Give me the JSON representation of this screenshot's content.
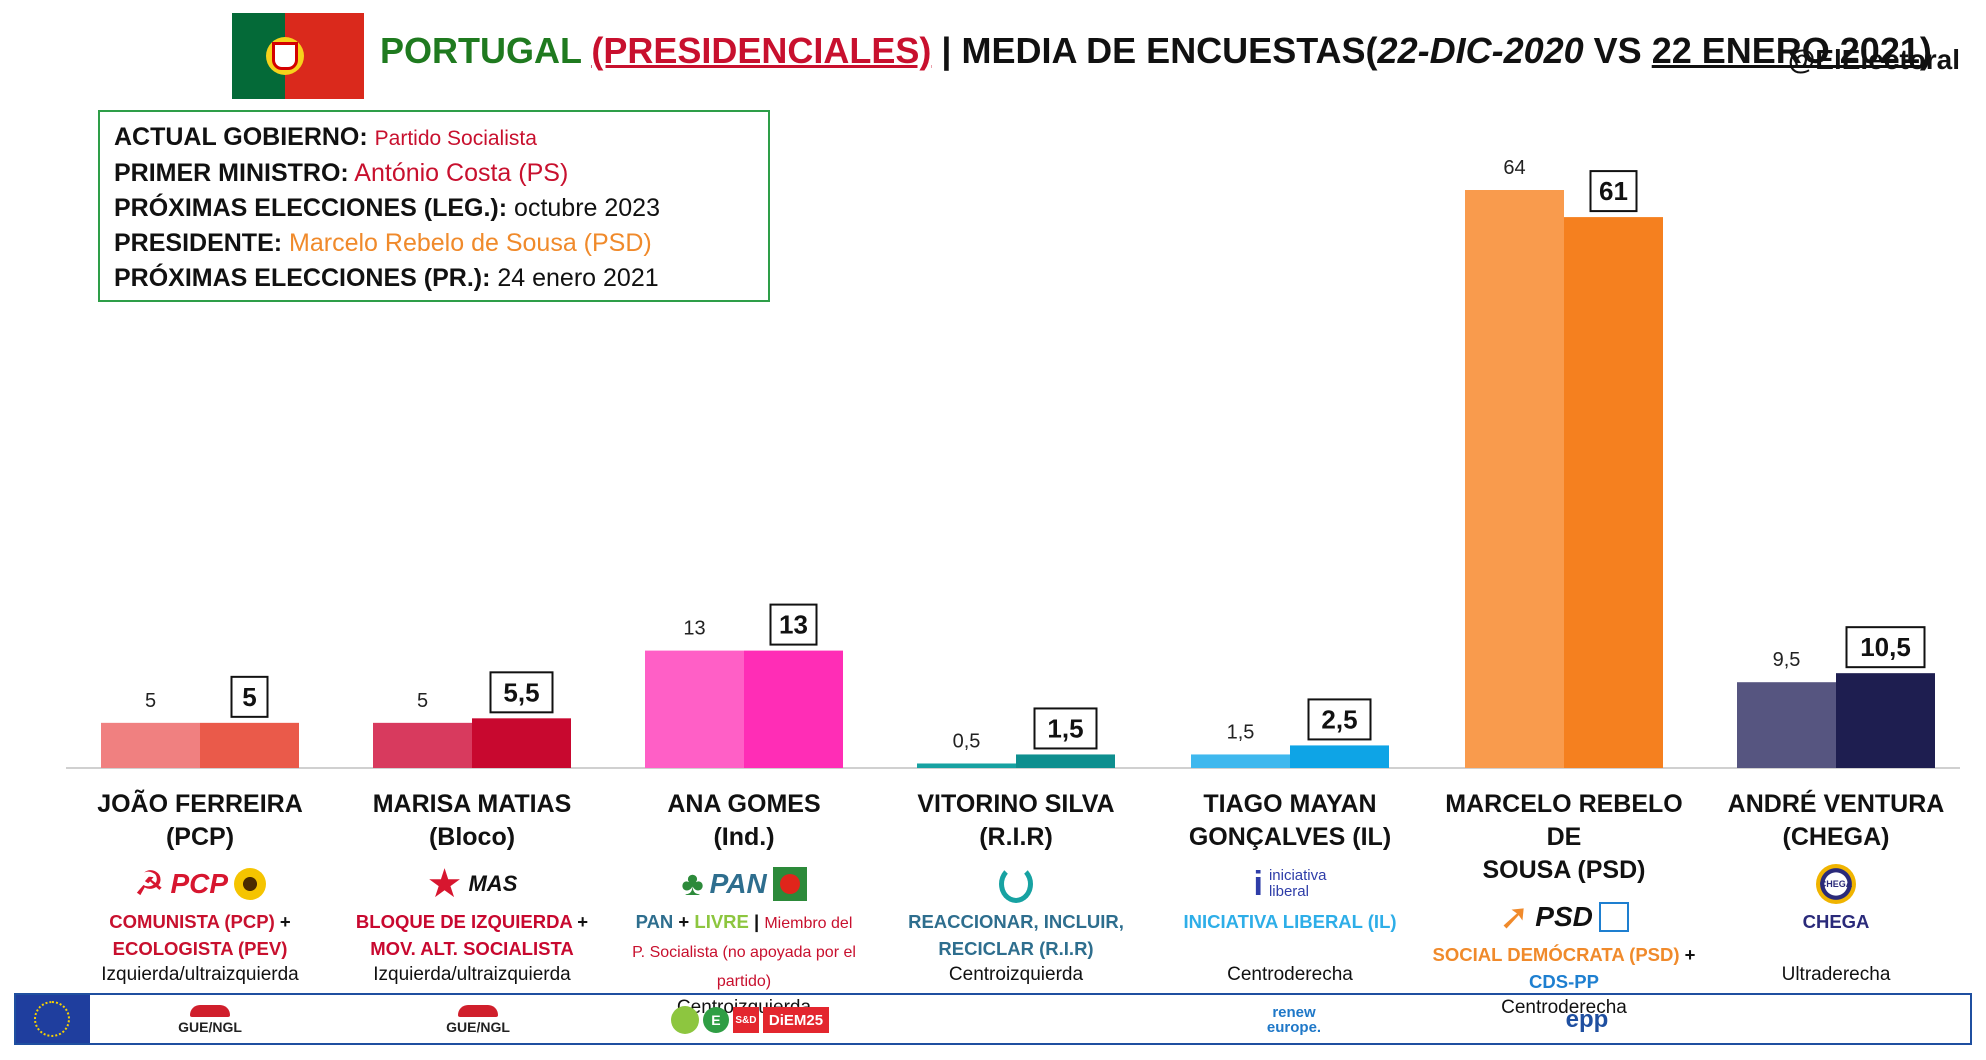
{
  "header": {
    "country": "PORTUGAL",
    "election_type": "(PRESIDENCIALES)",
    "separator": "|",
    "subtitle": "MEDIA DE ENCUESTAS",
    "open_paren": "(",
    "date_from": "22-DIC-2020",
    "vs": "VS",
    "date_to": "22 ENERO 2021",
    "close_paren": ")",
    "handle": "@ElElectoral"
  },
  "info_box": {
    "rows": [
      {
        "label": "ACTUAL GOBIERNO:",
        "value": "Partido Socialista"
      },
      {
        "label": "PRIMER MINISTRO:",
        "value": "António Costa (PS)"
      },
      {
        "label": "PRÓXIMAS ELECCIONES (LEG.):",
        "value": "octubre 2023"
      },
      {
        "label": "PRESIDENTE:",
        "value": "Marcelo Rebelo de Sousa (PSD)"
      },
      {
        "label": "PRÓXIMAS ELECCIONES (PR.):",
        "value": "24 enero 2021"
      }
    ],
    "colors": {
      "border": "#2e9e48",
      "red": "#c8102e",
      "orange": "#f08a2b"
    }
  },
  "chart_data": {
    "type": "bar",
    "title": "MEDIA DE ENCUESTAS (22-DIC-2020 VS 22 ENERO 2021)",
    "categories": [
      "JOÃO FERREIRA (PCP)",
      "MARISA MATIAS (Bloco)",
      "ANA GOMES (Ind.)",
      "VITORINO SILVA (R.I.R)",
      "TIAGO MAYAN GONÇALVES (IL)",
      "MARCELO REBELO DE SOUSA (PSD)",
      "ANDRÉ VENTURA (CHEGA)"
    ],
    "series": [
      {
        "name": "22-DIC-2020",
        "values": [
          5,
          5,
          13,
          0.5,
          1.5,
          64,
          9.5
        ],
        "labels": [
          "5",
          "5",
          "13",
          "0,5",
          "1,5",
          "64",
          "9,5"
        ]
      },
      {
        "name": "22 ENERO 2021",
        "values": [
          5,
          5.5,
          13,
          1.5,
          2.5,
          61,
          10.5
        ],
        "labels": [
          "5",
          "5,5",
          "13",
          "1,5",
          "2,5",
          "61",
          "10,5"
        ]
      }
    ],
    "colors_prev": [
      "#f08080",
      "#d83a5e",
      "#ff5fc6",
      "#17a2a2",
      "#3fb8ee",
      "#f99b4d",
      "#565580"
    ],
    "colors_curr": [
      "#ea5a4a",
      "#c8082f",
      "#ff2db6",
      "#0e8f8f",
      "#0ea4e6",
      "#f5801f",
      "#1e1e50"
    ],
    "ylim": [
      0,
      64
    ],
    "xlabel": "",
    "ylabel": "",
    "grid": false,
    "legend": "none"
  },
  "candidates": [
    {
      "name_line1": "JOÃO FERREIRA",
      "name_line2": "(PCP)",
      "logo": {
        "text": "PCP",
        "icons": [
          "hammer-sickle-icon",
          "sunflower-icon"
        ]
      },
      "party_parts": [
        {
          "text": "COMUNISTA (PCP)",
          "color": "#c8102e"
        },
        {
          "text": " +",
          "color": "#111111"
        },
        {
          "text": "ECOLOGISTA (PEV)",
          "color": "#c8102e",
          "newline": true
        }
      ],
      "ideology": "Izquierda/ultraizquierda"
    },
    {
      "name_line1": "MARISA MATIAS",
      "name_line2": "(Bloco)",
      "logo": {
        "text": "MAS",
        "icons": [
          "star-icon"
        ]
      },
      "party_parts": [
        {
          "text": "BLOQUE DE IZQUIERDA",
          "color": "#c8082f"
        },
        {
          "text": " +",
          "color": "#111111"
        },
        {
          "text": "MOV. ALT. SOCIALISTA",
          "color": "#c8082f",
          "newline": true
        }
      ],
      "ideology": "Izquierda/ultraizquierda"
    },
    {
      "name_line1": "ANA GOMES",
      "name_line2": "(Ind.)",
      "logo": {
        "text": "PAN",
        "icons": [
          "tree-icon",
          "poppy-icon"
        ]
      },
      "party_parts": [
        {
          "text": "PAN",
          "color": "#2e6e8e"
        },
        {
          "text": " + ",
          "color": "#111111"
        },
        {
          "text": "LIVRE",
          "color": "#8dc63f"
        },
        {
          "text": " | ",
          "color": "#111111"
        },
        {
          "text": "Miembro del",
          "color": "#c8102e",
          "small": true
        },
        {
          "text": "P. Socialista (no apoyada por el partido)",
          "color": "#c8102e",
          "small": true,
          "newline": true
        }
      ],
      "ideology": "Centroizquierda"
    },
    {
      "name_line1": "VITORINO SILVA",
      "name_line2": "(R.I.R)",
      "logo": {
        "text": "",
        "icons": [
          "swirl-icon"
        ]
      },
      "party_parts": [
        {
          "text": "REACCIONAR, INCLUIR,",
          "color": "#2e6e8e"
        },
        {
          "text": "RECICLAR (R.I.R)",
          "color": "#2e6e8e",
          "newline": true
        }
      ],
      "ideology": "Centroizquierda"
    },
    {
      "name_line1": "TIAGO MAYAN",
      "name_line2": "GONÇALVES (IL)",
      "logo": {
        "text_top": "iniciativa",
        "text_bottom": "liberal",
        "icons": [
          "i-letter-icon"
        ]
      },
      "party_parts": [
        {
          "text": "INICIATIVA LIBERAL (IL)",
          "color": "#2eaee8"
        }
      ],
      "ideology": "Centroderecha"
    },
    {
      "name_line1": "MARCELO REBELO DE",
      "name_line2": "SOUSA (PSD)",
      "logo": {
        "text": "PSD",
        "icons": [
          "arrow-icon",
          "cds-square-icon"
        ]
      },
      "party_parts": [
        {
          "text": "SOCIAL DEMÓCRATA (PSD)",
          "color": "#f08a2b"
        },
        {
          "text": " +",
          "color": "#111111"
        },
        {
          "text": "CDS-PP",
          "color": "#1e7fd0",
          "newline": true
        }
      ],
      "ideology": "Centroderecha"
    },
    {
      "name_line1": "ANDRÉ VENTURA",
      "name_line2": "(CHEGA)",
      "logo": {
        "text": "CHEGA",
        "icons": [
          "chega-badge-icon"
        ]
      },
      "party_parts": [
        {
          "text": "CHEGA",
          "color": "#2a2a7a"
        }
      ],
      "ideology": "Ultraderecha"
    }
  ],
  "footer_groups": {
    "gue1": "GUE/NGL",
    "gue2": "GUE/NGL",
    "sd": "S&D",
    "diem": "DiEM25",
    "greens": "E",
    "renew_top": "renew",
    "renew_bottom": "europe.",
    "epp": "epp"
  }
}
